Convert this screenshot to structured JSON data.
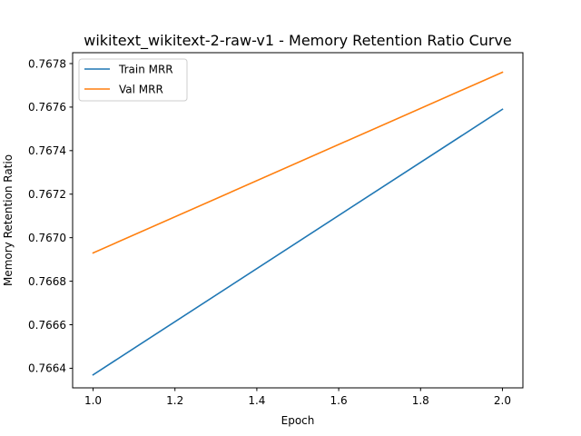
{
  "chart_data": {
    "type": "line",
    "title": "wikitext_wikitext-2-raw-v1 - Memory Retention Ratio Curve",
    "xlabel": "Epoch",
    "ylabel": "Memory Retention Ratio",
    "xlim": [
      0.95,
      2.05
    ],
    "ylim": [
      0.76631,
      0.76785
    ],
    "grid": false,
    "legend_position": "top-left",
    "x": [
      1.0,
      2.0
    ],
    "x_ticks": [
      1.0,
      1.2,
      1.4,
      1.6,
      1.8,
      2.0
    ],
    "x_tick_labels": [
      "1.0",
      "1.2",
      "1.4",
      "1.6",
      "1.8",
      "2.0"
    ],
    "y_ticks": [
      0.7664,
      0.7666,
      0.7668,
      0.767,
      0.7672,
      0.7674,
      0.7676,
      0.7678
    ],
    "y_tick_labels": [
      "0.7664",
      "0.7666",
      "0.7668",
      "0.7670",
      "0.7672",
      "0.7674",
      "0.7676",
      "0.7678"
    ],
    "series": [
      {
        "name": "Train MRR",
        "color": "#1f77b4",
        "values": [
          0.76637,
          0.76759
        ]
      },
      {
        "name": "Val MRR",
        "color": "#ff7f0e",
        "values": [
          0.76693,
          0.76776
        ]
      }
    ]
  }
}
